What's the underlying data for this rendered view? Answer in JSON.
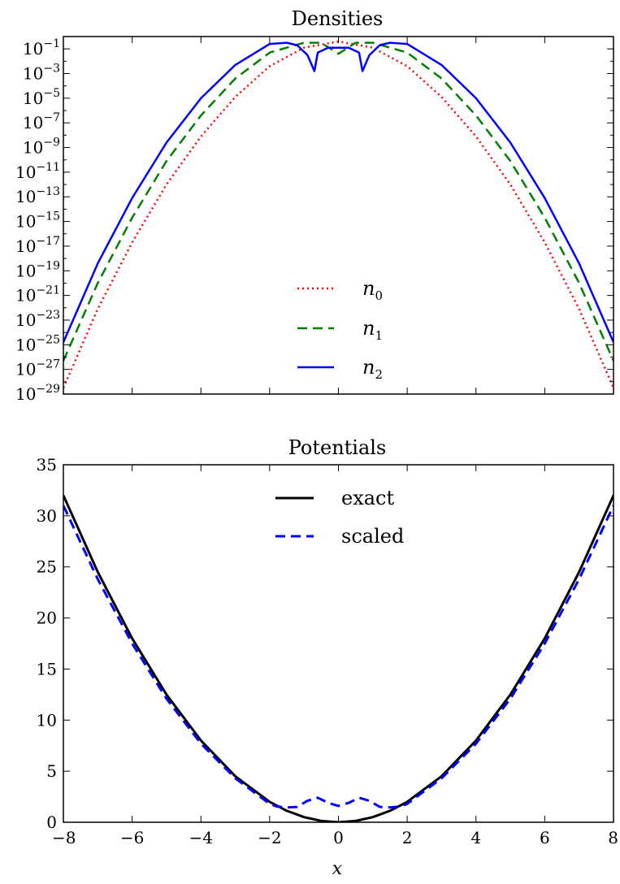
{
  "chart_data": [
    {
      "type": "line",
      "title": "Densities",
      "yscale": "log",
      "xlim": [
        -8,
        8
      ],
      "ylim": [
        1e-29,
        1
      ],
      "grid": false,
      "legend_position": "lower-center",
      "x_ticks": [
        -8,
        -6,
        -4,
        -2,
        0,
        2,
        4,
        6,
        8
      ],
      "y_tick_labels": [
        {
          "base": "10",
          "exp": "−1"
        },
        {
          "base": "10",
          "exp": "−3"
        },
        {
          "base": "10",
          "exp": "−5"
        },
        {
          "base": "10",
          "exp": "−7"
        },
        {
          "base": "10",
          "exp": "−9"
        },
        {
          "base": "10",
          "exp": "−11"
        },
        {
          "base": "10",
          "exp": "−13"
        },
        {
          "base": "10",
          "exp": "−15"
        },
        {
          "base": "10",
          "exp": "−17"
        },
        {
          "base": "10",
          "exp": "−19"
        },
        {
          "base": "10",
          "exp": "−21"
        },
        {
          "base": "10",
          "exp": "−23"
        },
        {
          "base": "10",
          "exp": "−25"
        },
        {
          "base": "10",
          "exp": "−27"
        },
        {
          "base": "10",
          "exp": "−29"
        }
      ],
      "y_tick_values": [
        -1,
        -3,
        -5,
        -7,
        -9,
        -11,
        -13,
        -15,
        -17,
        -19,
        -21,
        -23,
        -25,
        -27,
        -29
      ],
      "series": [
        {
          "name": "n",
          "subscript": "0",
          "color": "#ff0000",
          "style": "dotted",
          "x": [
            -8,
            -7,
            -6,
            -5,
            -4,
            -3,
            -2,
            -1,
            0,
            1,
            2,
            3,
            4,
            5,
            6,
            7,
            8
          ],
          "log10_y": [
            -28.5,
            -22.1,
            -16.7,
            -12.0,
            -8.1,
            -4.9,
            -2.4,
            -0.9,
            -0.4,
            -0.9,
            -2.4,
            -4.9,
            -8.1,
            -12.0,
            -16.7,
            -22.1,
            -28.5
          ]
        },
        {
          "name": "n",
          "subscript": "1",
          "color": "#007f00",
          "style": "dashed",
          "x": [
            -8,
            -7,
            -6,
            -5,
            -4,
            -3,
            -2,
            -1,
            -0.5,
            0,
            0.5,
            1,
            2,
            3,
            4,
            5,
            6,
            7,
            8
          ],
          "log10_y": [
            -26.3,
            -20.0,
            -14.7,
            -10.1,
            -6.4,
            -3.4,
            -1.3,
            -0.5,
            -0.5,
            -1.4,
            -0.5,
            -0.5,
            -1.3,
            -3.4,
            -6.4,
            -10.1,
            -14.7,
            -20.0,
            -26.3
          ]
        },
        {
          "name": "n",
          "subscript": "2",
          "color": "#0000ff",
          "style": "solid",
          "x": [
            -8,
            -7,
            -6,
            -5,
            -4,
            -3,
            -2,
            -1.5,
            -1.2,
            -0.9,
            -0.7,
            -0.6,
            -0.3,
            0,
            0.3,
            0.6,
            0.7,
            0.9,
            1.2,
            1.5,
            2,
            3,
            4,
            5,
            6,
            7,
            8
          ],
          "log10_y": [
            -24.8,
            -18.4,
            -13.1,
            -8.6,
            -5.0,
            -2.3,
            -0.6,
            -0.5,
            -0.7,
            -1.5,
            -2.8,
            -1.3,
            -0.9,
            -0.9,
            -0.9,
            -1.3,
            -2.8,
            -1.5,
            -0.7,
            -0.5,
            -0.6,
            -2.3,
            -5.0,
            -8.6,
            -13.1,
            -18.4,
            -24.8
          ]
        }
      ]
    },
    {
      "type": "line",
      "title": "Potentials",
      "xlabel": "x",
      "xlim": [
        -8,
        8
      ],
      "ylim": [
        0,
        35
      ],
      "grid": false,
      "legend_position": "upper-center",
      "x_ticks": [
        -8,
        -6,
        -4,
        -2,
        0,
        2,
        4,
        6,
        8
      ],
      "x_tick_labels": [
        "−8",
        "−6",
        "−4",
        "−2",
        "0",
        "2",
        "4",
        "6",
        "8"
      ],
      "y_ticks": [
        0,
        5,
        10,
        15,
        20,
        25,
        30,
        35
      ],
      "y_tick_labels": [
        "0",
        "5",
        "10",
        "15",
        "20",
        "25",
        "30",
        "35"
      ],
      "series": [
        {
          "name": "exact",
          "color": "#000000",
          "style": "solid",
          "x": [
            -8,
            -7,
            -6,
            -5,
            -4,
            -3,
            -2,
            -1.5,
            -1,
            -0.5,
            0,
            0.5,
            1,
            1.5,
            2,
            3,
            4,
            5,
            6,
            7,
            8
          ],
          "y": [
            32,
            24.5,
            18,
            12.5,
            8,
            4.5,
            2,
            1.125,
            0.5,
            0.125,
            0,
            0.125,
            0.5,
            1.125,
            2,
            4.5,
            8,
            12.5,
            18,
            24.5,
            32
          ]
        },
        {
          "name": "scaled",
          "color": "#0000ff",
          "style": "dashed",
          "x": [
            -8,
            -7,
            -6,
            -5,
            -4,
            -3,
            -2,
            -1.8,
            -1.5,
            -1.2,
            -0.9,
            -0.6,
            -0.3,
            0,
            0.3,
            0.6,
            0.9,
            1.2,
            1.5,
            1.8,
            2,
            3,
            4,
            5,
            6,
            7,
            8
          ],
          "y": [
            31,
            23.8,
            17.5,
            12.1,
            7.7,
            4.3,
            1.8,
            1.55,
            1.45,
            1.5,
            2.1,
            2.4,
            1.9,
            1.6,
            1.9,
            2.4,
            2.1,
            1.5,
            1.45,
            1.55,
            1.8,
            4.3,
            7.7,
            12.1,
            17.5,
            23.8,
            31
          ]
        }
      ]
    }
  ]
}
